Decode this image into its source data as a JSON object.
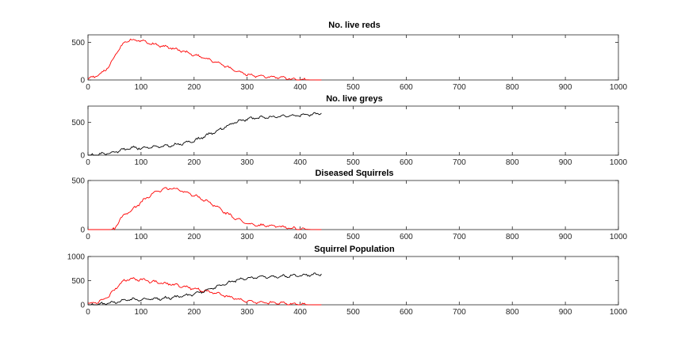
{
  "figure": {
    "background": "#ffffff",
    "series_colors": {
      "reds": "#ff0000",
      "greys": "#000000"
    }
  },
  "chart_data": [
    {
      "type": "line",
      "title": "No. live reds",
      "xlim": [
        0,
        1000
      ],
      "ylim": [
        0,
        600
      ],
      "xticks": [
        0,
        100,
        200,
        300,
        400,
        500,
        600,
        700,
        800,
        900,
        1000
      ],
      "yticks": [
        0,
        500
      ],
      "series": [
        {
          "color": "#ff0000",
          "x": [
            0,
            20,
            40,
            55,
            70,
            80,
            90,
            100,
            120,
            140,
            160,
            180,
            200,
            220,
            240,
            260,
            280,
            300,
            320,
            340,
            360,
            380,
            400,
            420,
            440
          ],
          "y": [
            20,
            60,
            180,
            380,
            510,
            540,
            520,
            530,
            480,
            450,
            420,
            380,
            330,
            290,
            240,
            180,
            120,
            70,
            50,
            40,
            35,
            15,
            5,
            1,
            0
          ]
        }
      ]
    },
    {
      "type": "line",
      "title": "No. live greys",
      "xlim": [
        0,
        1000
      ],
      "ylim": [
        0,
        750
      ],
      "xticks": [
        0,
        100,
        200,
        300,
        400,
        500,
        600,
        700,
        800,
        900,
        1000
      ],
      "yticks": [
        0,
        500
      ],
      "series": [
        {
          "color": "#000000",
          "x": [
            0,
            20,
            40,
            60,
            80,
            100,
            120,
            140,
            160,
            180,
            200,
            220,
            240,
            260,
            280,
            300,
            320,
            340,
            360,
            380,
            400,
            420,
            440
          ],
          "y": [
            0,
            10,
            30,
            70,
            110,
            110,
            120,
            130,
            150,
            180,
            220,
            290,
            360,
            440,
            510,
            550,
            570,
            580,
            590,
            600,
            610,
            620,
            640
          ]
        }
      ]
    },
    {
      "type": "line",
      "title": "Diseased Squirrels",
      "xlim": [
        0,
        1000
      ],
      "ylim": [
        0,
        500
      ],
      "xticks": [
        0,
        100,
        200,
        300,
        400,
        500,
        600,
        700,
        800,
        900,
        1000
      ],
      "yticks": [
        0,
        500
      ],
      "series": [
        {
          "color": "#ff0000",
          "x": [
            0,
            40,
            50,
            60,
            70,
            80,
            90,
            100,
            120,
            140,
            160,
            180,
            200,
            220,
            240,
            260,
            280,
            300,
            320,
            340,
            360,
            380,
            400,
            420,
            440
          ],
          "y": [
            0,
            0,
            5,
            100,
            160,
            190,
            230,
            280,
            360,
            410,
            420,
            390,
            350,
            300,
            240,
            170,
            110,
            60,
            40,
            45,
            30,
            15,
            5,
            1,
            0
          ]
        }
      ]
    },
    {
      "type": "line",
      "title": "Squirrel Population",
      "xlim": [
        0,
        1000
      ],
      "ylim": [
        0,
        1000
      ],
      "xticks": [
        0,
        100,
        200,
        300,
        400,
        500,
        600,
        700,
        800,
        900,
        1000
      ],
      "yticks": [
        0,
        500,
        1000
      ],
      "series": [
        {
          "color": "#ff0000",
          "x": [
            0,
            20,
            40,
            55,
            70,
            80,
            90,
            100,
            120,
            140,
            160,
            180,
            200,
            220,
            240,
            260,
            280,
            300,
            320,
            340,
            360,
            380,
            400,
            420,
            440
          ],
          "y": [
            20,
            60,
            180,
            380,
            510,
            540,
            520,
            530,
            480,
            450,
            420,
            380,
            330,
            290,
            240,
            180,
            120,
            70,
            50,
            40,
            35,
            15,
            5,
            1,
            0
          ]
        },
        {
          "color": "#000000",
          "x": [
            0,
            20,
            40,
            60,
            80,
            100,
            120,
            140,
            160,
            180,
            200,
            220,
            240,
            260,
            280,
            300,
            320,
            340,
            360,
            380,
            400,
            420,
            440
          ],
          "y": [
            0,
            10,
            30,
            70,
            110,
            110,
            120,
            130,
            150,
            180,
            220,
            290,
            360,
            440,
            510,
            550,
            570,
            580,
            590,
            600,
            610,
            620,
            640
          ]
        }
      ]
    }
  ]
}
